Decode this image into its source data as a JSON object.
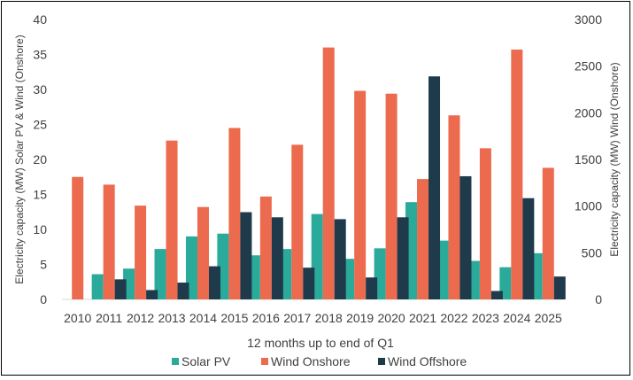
{
  "chart_data": {
    "type": "bar",
    "title": "",
    "xlabel": "12 months up to end of Q1",
    "ylabel_left": "Electricity capacity (MW) Solar PV & Wind (Onshore)",
    "ylabel_right": "Electricity capacity (MW) Wind (Onshore)",
    "categories": [
      "2010",
      "2011",
      "2012",
      "2013",
      "2014",
      "2015",
      "2016",
      "2017",
      "2018",
      "2019",
      "2020",
      "2021",
      "2022",
      "2023",
      "2024",
      "2025"
    ],
    "ylim_left": [
      0,
      40
    ],
    "yticks_left": [
      0,
      5,
      10,
      15,
      20,
      25,
      30,
      35,
      40
    ],
    "ylim_right": [
      0,
      3000
    ],
    "yticks_right": [
      0,
      500,
      1000,
      1500,
      2000,
      2500,
      3000
    ],
    "grid": false,
    "legend_position": "bottom",
    "series": [
      {
        "name": "Solar PV",
        "axis": "left",
        "color": "#2aaa9a",
        "values": [
          0,
          3.6,
          4.4,
          7.2,
          9.0,
          9.4,
          6.3,
          7.2,
          12.2,
          5.8,
          7.3,
          13.9,
          8.4,
          5.5,
          4.6,
          6.6
        ]
      },
      {
        "name": "Wind Onshore",
        "axis": "left",
        "color": "#ec6a4e",
        "values": [
          17.5,
          16.4,
          13.4,
          22.7,
          13.2,
          24.5,
          14.7,
          22.1,
          36.0,
          29.8,
          29.4,
          17.2,
          26.3,
          21.6,
          35.7,
          18.8
        ]
      },
      {
        "name": "Wind Offshore",
        "axis": "right",
        "color": "#1e3a4b",
        "values": [
          0,
          215,
          100,
          180,
          355,
          935,
          880,
          340,
          860,
          235,
          880,
          2390,
          1320,
          90,
          1085,
          245
        ]
      }
    ]
  }
}
